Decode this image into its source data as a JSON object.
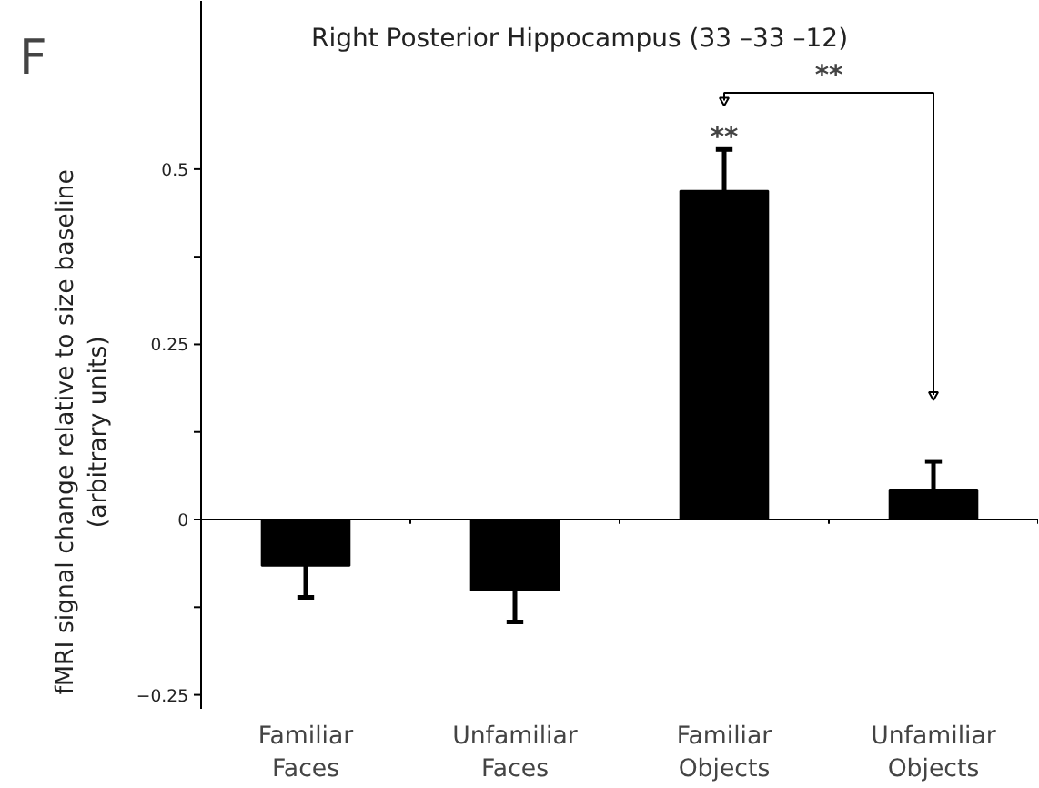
{
  "chart_data": {
    "type": "bar",
    "title": "Right Posterior Hippocampus (33 –33 –12)",
    "ylabel": "fMRI signal change relative to size baseline\n(arbitrary units)",
    "categories": [
      "Familiar Faces",
      "Unfamiliar Faces",
      "Familiar Objects",
      "Unfamiliar Objects"
    ],
    "values": [
      -0.066,
      -0.101,
      0.469,
      0.043
    ],
    "color": "#000000",
    "errors": [
      [
        -0.111,
        -0.066
      ],
      [
        -0.146,
        -0.101
      ],
      [
        0.469,
        0.528
      ],
      [
        0.043,
        0.083
      ]
    ],
    "ylim": [
      -0.27,
      0.74
    ],
    "yticks": [
      {
        "value": -0.25,
        "label": "−0.25"
      },
      {
        "value": -0.125,
        "label": null
      },
      0,
      {
        "value": 0.125,
        "label": null
      },
      0.25,
      {
        "value": 0.375,
        "label": null
      },
      0.5
    ],
    "annotations": [
      "F",
      {
        "text": "**",
        "x": "Familiar Objects",
        "y": 0.528
      },
      "**"
    ],
    "legend": false
  }
}
